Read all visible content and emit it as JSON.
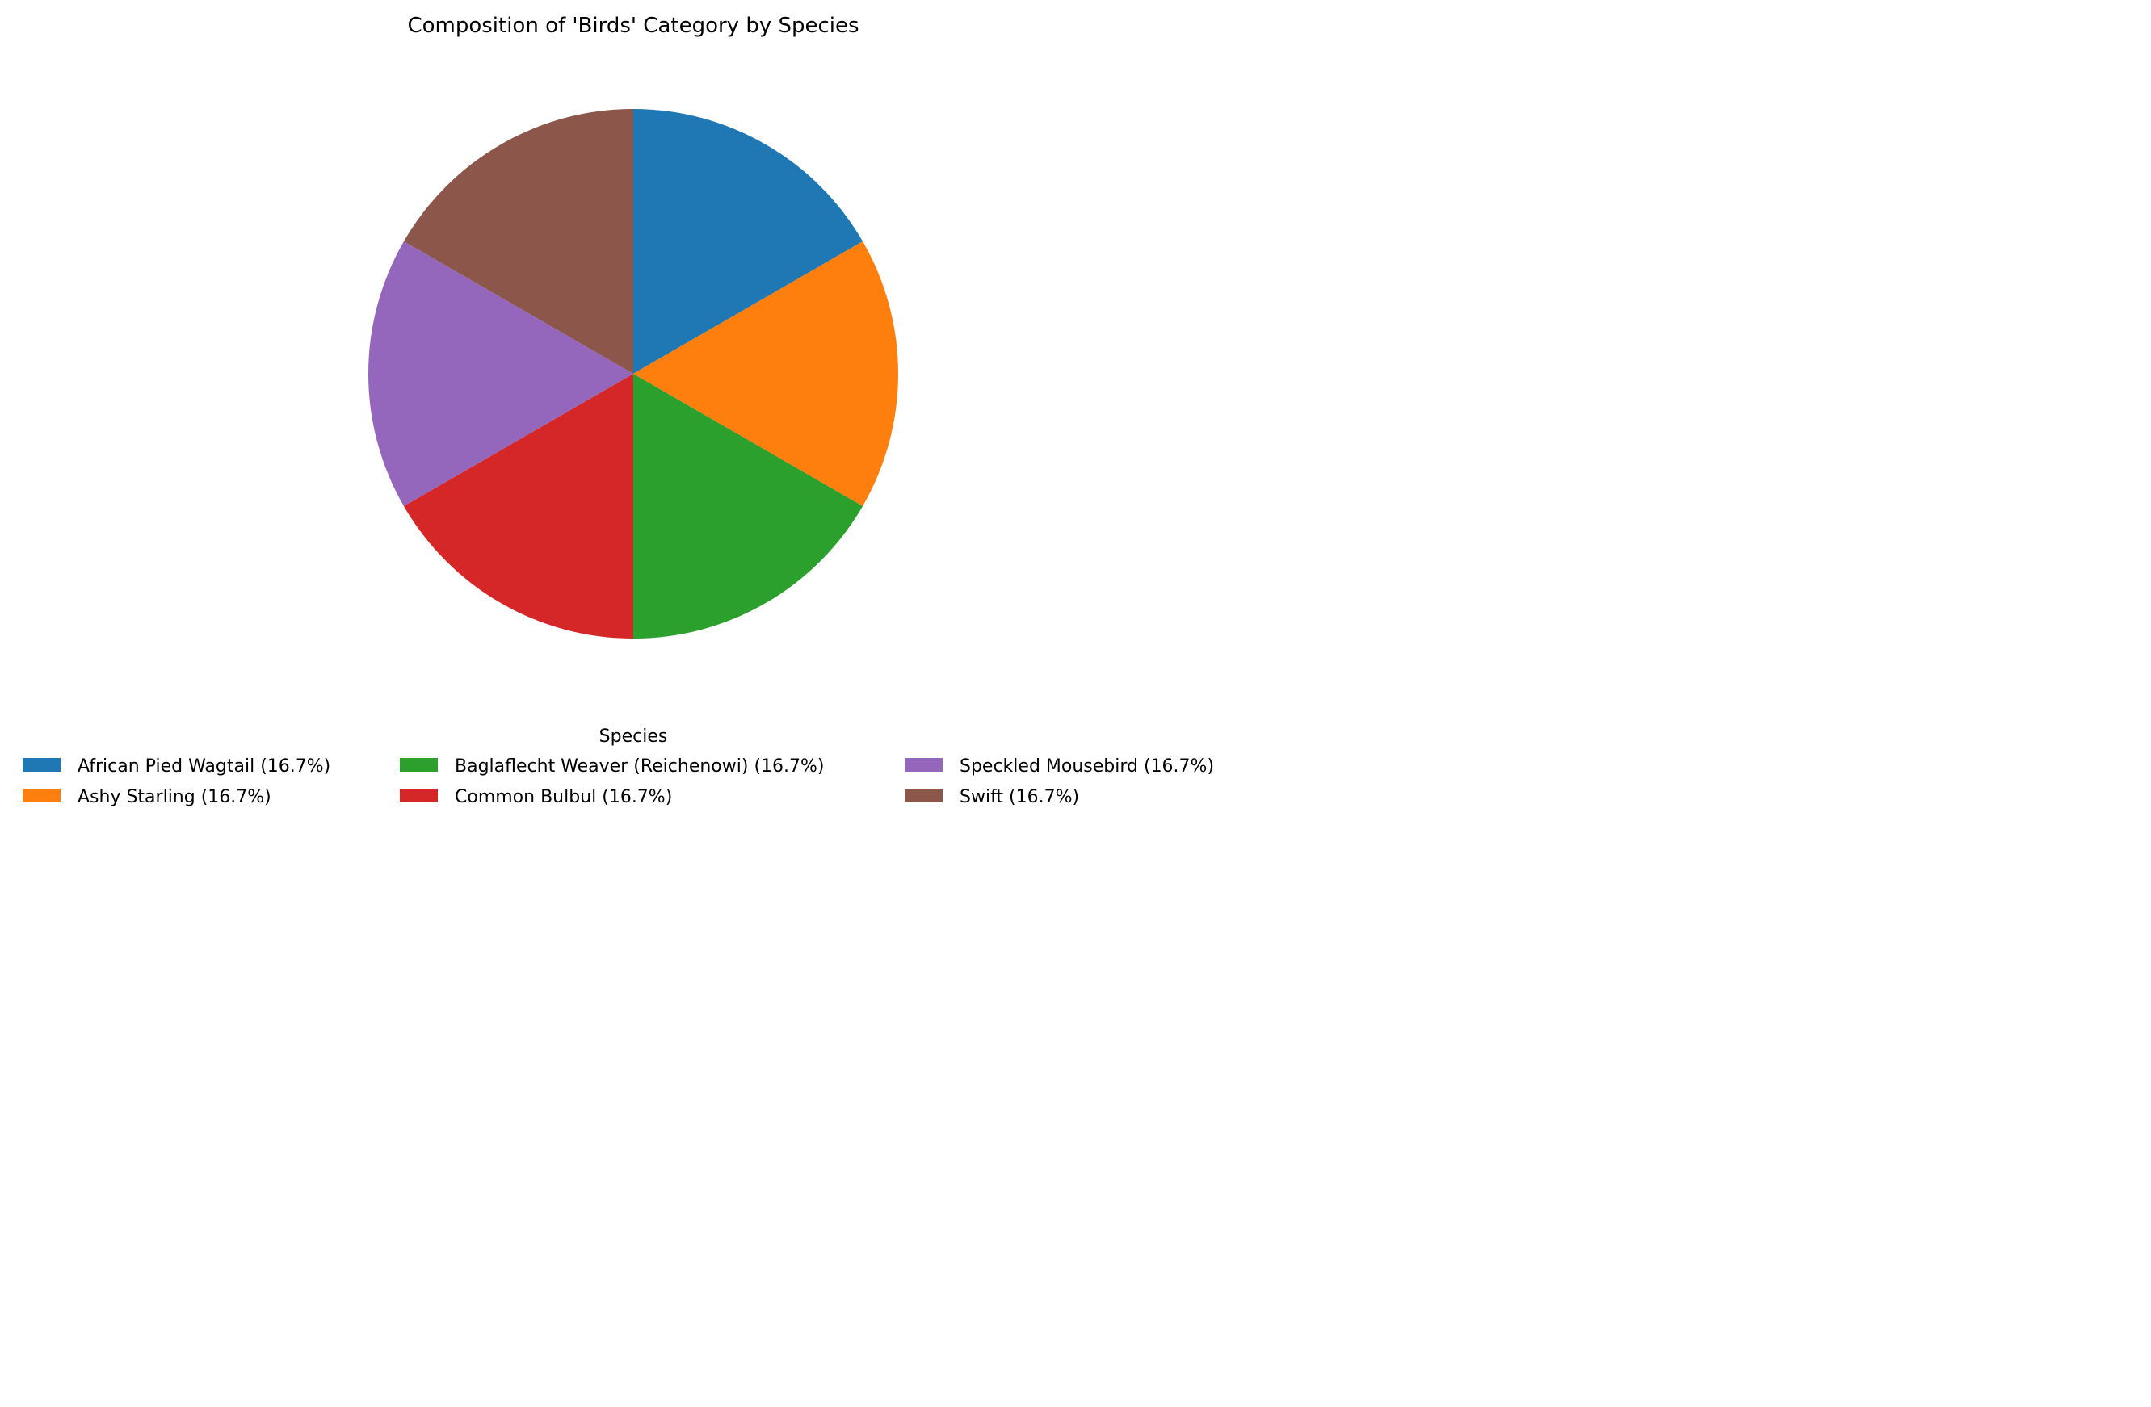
{
  "chart_data": {
    "type": "pie",
    "title": "Composition of 'Birds' Category by Species",
    "legend_title": "Species",
    "legend_position": "bottom-center",
    "start_angle": "top, clockwise",
    "slices": [
      {
        "label": "African Pied Wagtail (16.7%)",
        "name": "African Pied Wagtail",
        "percent": 16.7,
        "color": "#1f77b4"
      },
      {
        "label": "Ashy Starling (16.7%)",
        "name": "Ashy Starling",
        "percent": 16.7,
        "color": "#ff7f0e"
      },
      {
        "label": "Baglaflecht Weaver (Reichenowi) (16.7%)",
        "name": "Baglaflecht Weaver (Reichenowi)",
        "percent": 16.7,
        "color": "#2ca02c"
      },
      {
        "label": "Common Bulbul (16.7%)",
        "name": "Common Bulbul",
        "percent": 16.7,
        "color": "#d62728"
      },
      {
        "label": "Speckled Mousebird (16.7%)",
        "name": "Speckled Mousebird",
        "percent": 16.7,
        "color": "#9467bd"
      },
      {
        "label": "Swift (16.7%)",
        "name": "Swift",
        "percent": 16.7,
        "color": "#8c564b"
      }
    ]
  }
}
